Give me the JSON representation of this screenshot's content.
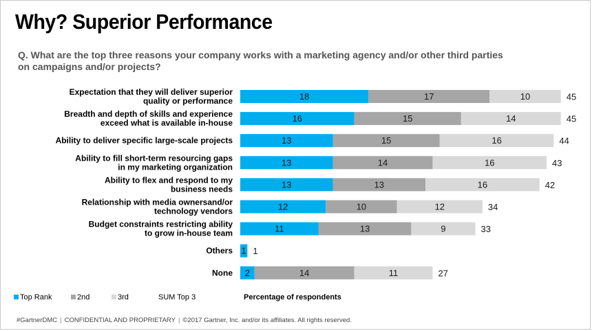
{
  "slide": {
    "title": "Why? Superior Performance",
    "question": "Q. What are the top three reasons your company works with a marketing agency and/or other third parties on campaigns and/or projects?"
  },
  "footer": {
    "tag": "#GartnerDMC",
    "confidential": "CONFIDENTIAL AND PROPRIETARY",
    "copyright": "©2017 Gartner, Inc. and/or its affiliates. All rights reserved."
  },
  "colors": {
    "top_rank": "#00aeef",
    "second": "#a6a6a6",
    "third": "#d9d9d9"
  },
  "chart_data": {
    "type": "bar",
    "orientation": "horizontal",
    "stacked": true,
    "title": "",
    "xlabel": "Percentage of respondents",
    "ylabel": "",
    "xlim": [
      0,
      50
    ],
    "grid": false,
    "legend_position": "bottom-left",
    "categories": [
      [
        "Expectation that they will deliver superior",
        "quality or performance"
      ],
      [
        "Breadth and depth of skills and experience",
        "exceed what is available in-house"
      ],
      [
        "Ability to deliver specific large-scale projects"
      ],
      [
        "Ability to fill short-term resourcing gaps",
        "in my marketing organization"
      ],
      [
        "Ability to flex and respond to my",
        "business needs"
      ],
      [
        "Relationship with media ownersand/or",
        "technology vendors"
      ],
      [
        "Budget constraints restricting ability",
        "to grow in-house team"
      ],
      [
        "Others"
      ],
      [
        "None"
      ]
    ],
    "series": [
      {
        "name": "Top Rank",
        "color": "#00aeef",
        "values": [
          18,
          16,
          13,
          13,
          13,
          12,
          11,
          1,
          2
        ]
      },
      {
        "name": "2nd",
        "color": "#a6a6a6",
        "values": [
          17,
          15,
          15,
          14,
          13,
          10,
          13,
          null,
          14
        ]
      },
      {
        "name": "3rd",
        "color": "#d9d9d9",
        "values": [
          10,
          14,
          16,
          16,
          16,
          12,
          9,
          null,
          11
        ]
      }
    ],
    "sum_top3": {
      "name": "SUM Top 3",
      "values": [
        45,
        45,
        44,
        43,
        42,
        34,
        33,
        1,
        27
      ]
    }
  }
}
